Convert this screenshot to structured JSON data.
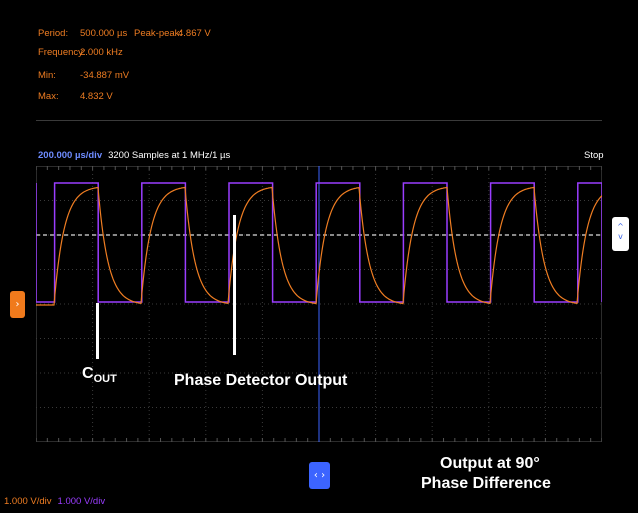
{
  "measurements": {
    "period_label": "Period:",
    "period_value": "500.000 µs",
    "peak_label": "Peak-peak:",
    "peak_value": "4.867 V",
    "frequency_label": "Frequency:",
    "frequency_value": "2.000 kHz",
    "min_label": "Min:",
    "min_value": "-34.887 mV",
    "max_label": "Max:",
    "max_value": "4.832 V"
  },
  "timebase": {
    "scale": "200.000 µs/div",
    "samples": "3200 Samples at 1 MHz/1 µs",
    "status": "Stop"
  },
  "channels": [
    {
      "scale": "1.000 V/div",
      "color": "#ef7d22"
    },
    {
      "scale": "1.000 V/div",
      "color": "#9a3dff"
    }
  ],
  "annotations": {
    "cout_main": "C",
    "cout_sub": "OUT",
    "phase_detector": "Phase Detector Output",
    "output_line1": "Output at 90°",
    "output_line2": "Phase Difference"
  },
  "icons": {
    "trigger_left": "chevron-right-icon",
    "trigger_right": "chevron-updown-icon",
    "horizontal_position": "chevron-leftright-icon"
  },
  "colors": {
    "orange": "#ef7d22",
    "purple": "#9a3dff",
    "blue": "#3c64ff",
    "background": "#000000"
  }
}
